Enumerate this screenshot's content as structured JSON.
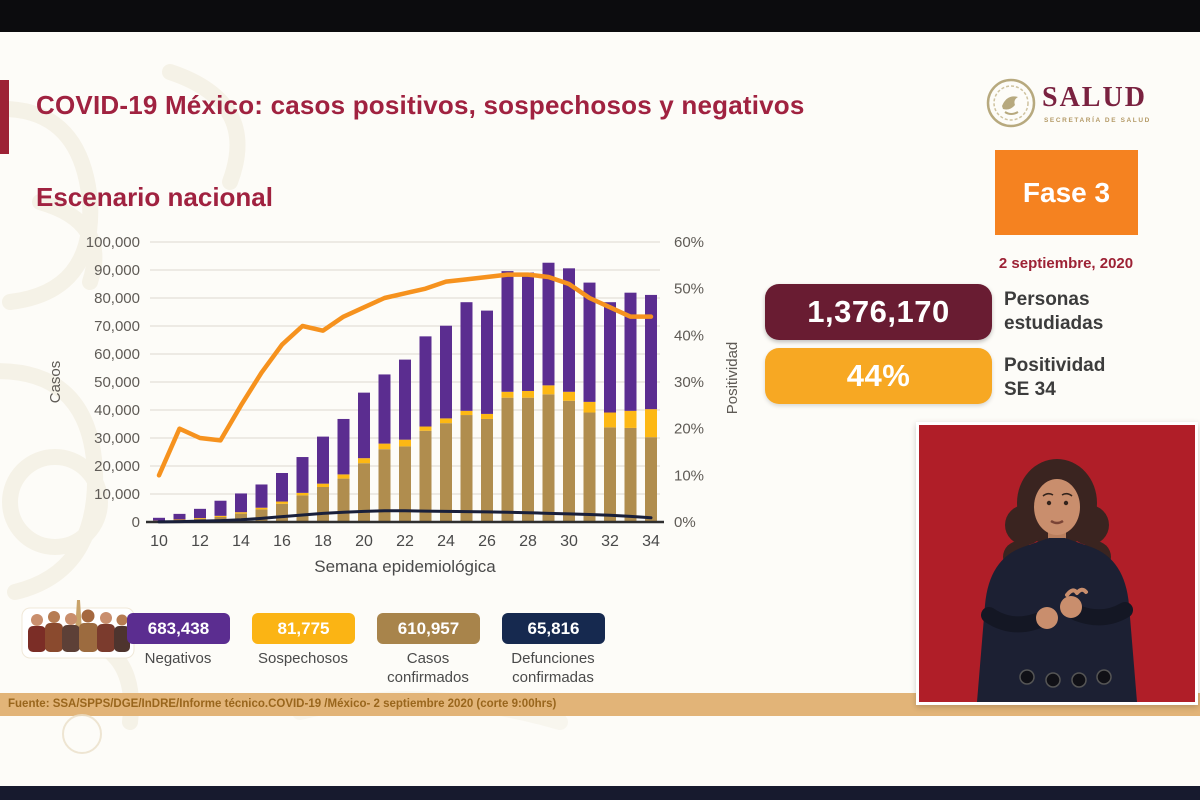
{
  "header": {
    "title": "COVID-19 México: casos positivos, sospechosos y negativos",
    "section_title": "Escenario nacional"
  },
  "logo": {
    "text": "SALUD",
    "subtext": "SECRETARÍA DE SALUD"
  },
  "phase": {
    "label": "Fase 3",
    "date": "2 septiembre, 2020"
  },
  "stats": {
    "studied": {
      "value": "1,376,170",
      "label": "Personas\nestudiadas",
      "color": "#691c32"
    },
    "positivity": {
      "value": "44%",
      "label": "Positividad\nSE 34",
      "color": "#f7a823"
    }
  },
  "legend": {
    "items": [
      {
        "value": "683,438",
        "label": "Negativos",
        "color": "#5b2d90"
      },
      {
        "value": "81,775",
        "label": "Sospechosos",
        "color": "#fbb414"
      },
      {
        "value": "610,957",
        "label": "Casos\nconfirmados",
        "color": "#a8844b"
      },
      {
        "value": "65,816",
        "label": "Defunciones\nconfirmadas",
        "color": "#16294f"
      }
    ]
  },
  "footer": {
    "source": "Fuente: SSA/SPPS/DGE/InDRE/Informe técnico.COVID-19 /México- 2 septiembre 2020 (corte 9:00hrs)"
  },
  "chart_data": {
    "type": "bar",
    "stacked": true,
    "x": [
      10,
      11,
      12,
      13,
      14,
      15,
      16,
      17,
      18,
      19,
      20,
      21,
      22,
      23,
      24,
      25,
      26,
      27,
      28,
      29,
      30,
      31,
      32,
      33,
      34
    ],
    "xlabel": "Semana epidemiológica",
    "ylabel": "Casos",
    "y2label": "Positividad",
    "ylim": [
      0,
      100000
    ],
    "y2lim": [
      0,
      60
    ],
    "y_ticks": [
      "0",
      "10,000",
      "20,000",
      "30,000",
      "40,000",
      "50,000",
      "60,000",
      "70,000",
      "80,000",
      "90,000",
      "100,000"
    ],
    "y2_ticks": [
      "0%",
      "10%",
      "20%",
      "30%",
      "40%",
      "50%",
      "60%"
    ],
    "grid": true,
    "series": [
      {
        "name": "Casos confirmados",
        "type": "bar",
        "axis": "left",
        "color": "#b08d4e",
        "values": [
          400,
          700,
          1100,
          1800,
          3000,
          4500,
          6500,
          9500,
          12500,
          15500,
          21000,
          26000,
          27000,
          32600,
          35300,
          38200,
          36800,
          44400,
          44400,
          45600,
          43300,
          39100,
          33800,
          33600,
          30300
        ]
      },
      {
        "name": "Sospechosos",
        "type": "bar",
        "axis": "left",
        "color": "#fdb814",
        "values": [
          100,
          200,
          300,
          400,
          500,
          600,
          800,
          900,
          1200,
          1500,
          1800,
          2000,
          2400,
          1500,
          1700,
          1500,
          1800,
          2100,
          2400,
          3200,
          3200,
          3800,
          5300,
          6100,
          10000
        ]
      },
      {
        "name": "Negativos",
        "type": "bar",
        "axis": "left",
        "color": "#5b2d90",
        "values": [
          1000,
          2000,
          3300,
          5400,
          6700,
          8300,
          10200,
          12800,
          16800,
          19800,
          23400,
          24700,
          28600,
          32200,
          33100,
          38800,
          36900,
          43100,
          42300,
          43800,
          44100,
          42600,
          39400,
          42200,
          40800
        ]
      },
      {
        "name": "Positividad",
        "type": "line",
        "axis": "right",
        "color": "#f6921e",
        "values": [
          10,
          20,
          18,
          17.5,
          25,
          32,
          38,
          42,
          41,
          44,
          46,
          48,
          49,
          50,
          51.5,
          52,
          52.5,
          53,
          53,
          52.5,
          51,
          48,
          46,
          44,
          44
        ]
      },
      {
        "name": "Defunciones confirmadas",
        "type": "line",
        "axis": "left",
        "color": "#191f3a",
        "values": [
          50,
          150,
          300,
          500,
          800,
          1300,
          1900,
          2500,
          3100,
          3500,
          3800,
          4000,
          4000,
          3900,
          3800,
          3700,
          3600,
          3500,
          3300,
          3100,
          2900,
          2700,
          2400,
          2000,
          1500
        ]
      }
    ]
  }
}
